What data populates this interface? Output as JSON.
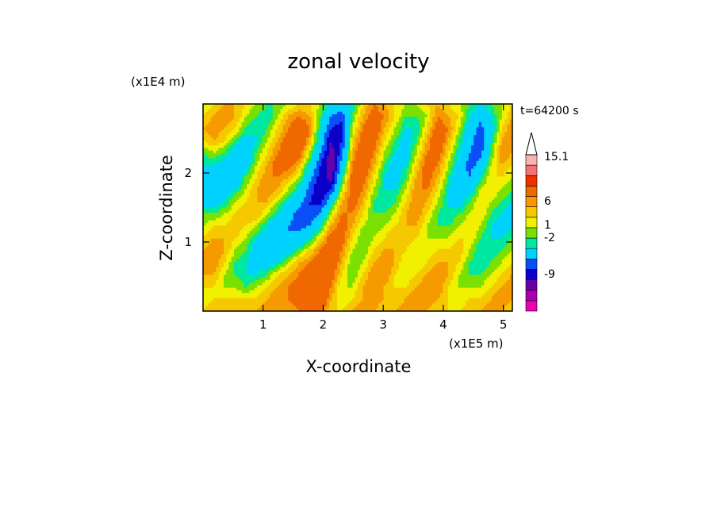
{
  "chart_data": {
    "type": "heatmap",
    "title": "zonal velocity",
    "xlabel": "X-coordinate",
    "ylabel": "Z-coordinate",
    "x_scale_label": "(x1E5 m)",
    "y_scale_label": "(x1E4 m)",
    "time_label": "t=64200 s",
    "xlim": [
      0,
      5.15
    ],
    "ylim": [
      0,
      3.0
    ],
    "x_ticks": [
      1,
      2,
      3,
      4,
      5
    ],
    "y_ticks": [
      1,
      2
    ],
    "x_tick_labels": [
      "1",
      "2",
      "3",
      "4",
      "5"
    ],
    "y_tick_labels": [
      "1",
      "2"
    ],
    "colorbar": {
      "extend": "max",
      "colors": [
        "#e900b4",
        "#a800b0",
        "#6a00a8",
        "#0a00c8",
        "#0a4ef5",
        "#00d2ff",
        "#00e7a0",
        "#7ae000",
        "#f0f000",
        "#f5c800",
        "#f59a00",
        "#f06800",
        "#f03000",
        "#f57070",
        "#fbb2b2"
      ],
      "tick_labels": [
        "15.1",
        "6",
        "1",
        "-2",
        "-9"
      ],
      "tick_values": [
        15.1,
        6,
        1,
        -2,
        -9
      ]
    },
    "field": [
      [
        0,
        1,
        2,
        2,
        1,
        0,
        -1,
        -1,
        0,
        1,
        1,
        0,
        -2,
        -4,
        -2,
        1,
        3,
        2,
        1,
        0,
        0,
        1,
        2,
        1,
        0,
        -1,
        -2,
        -1,
        0,
        1
      ],
      [
        1,
        2,
        3,
        2,
        0,
        -1,
        -2,
        0,
        2,
        3,
        2,
        -1,
        -5,
        -6,
        -1,
        2,
        4,
        3,
        1,
        -1,
        -1,
        0,
        3,
        2,
        1,
        -2,
        -4,
        -2,
        0,
        2
      ],
      [
        2,
        3,
        2,
        1,
        -1,
        -2,
        -1,
        1,
        3,
        5,
        3,
        -2,
        -7,
        -8,
        0,
        3,
        5,
        2,
        0,
        -2,
        -2,
        1,
        4,
        3,
        0,
        -3,
        -6,
        -3,
        1,
        3
      ],
      [
        1,
        2,
        1,
        -1,
        -3,
        -2,
        0,
        2,
        4,
        6,
        2,
        -3,
        -9,
        -7,
        1,
        4,
        4,
        1,
        -1,
        -3,
        -1,
        2,
        5,
        2,
        -1,
        -4,
        -7,
        -2,
        2,
        3
      ],
      [
        -1,
        0,
        -1,
        -3,
        -4,
        -1,
        1,
        3,
        5,
        4,
        0,
        -5,
        -10,
        -6,
        2,
        5,
        3,
        0,
        -2,
        -3,
        0,
        3,
        4,
        1,
        -2,
        -5,
        -6,
        -1,
        3,
        2
      ],
      [
        -2,
        -2,
        -3,
        -5,
        -3,
        0,
        2,
        4,
        4,
        2,
        -2,
        -7,
        -11,
        -4,
        3,
        5,
        2,
        -1,
        -3,
        -2,
        1,
        4,
        3,
        0,
        -3,
        -6,
        -4,
        0,
        2,
        1
      ],
      [
        -3,
        -4,
        -5,
        -4,
        -1,
        1,
        3,
        3,
        2,
        0,
        -4,
        -8,
        -10,
        -2,
        4,
        4,
        1,
        -2,
        -3,
        -1,
        2,
        4,
        2,
        -1,
        -4,
        -5,
        -2,
        1,
        1,
        0
      ],
      [
        -4,
        -5,
        -4,
        -2,
        0,
        2,
        3,
        2,
        0,
        -2,
        -6,
        -9,
        -7,
        0,
        4,
        3,
        0,
        -2,
        -2,
        0,
        3,
        3,
        1,
        -2,
        -4,
        -3,
        0,
        1,
        0,
        -1
      ],
      [
        -3,
        -3,
        -2,
        0,
        1,
        2,
        2,
        0,
        -2,
        -4,
        -7,
        -8,
        -3,
        2,
        4,
        2,
        -1,
        -2,
        -1,
        1,
        3,
        2,
        0,
        -2,
        -3,
        -1,
        1,
        0,
        -1,
        -2
      ],
      [
        -1,
        -1,
        0,
        1,
        2,
        2,
        0,
        -2,
        -4,
        -6,
        -7,
        -5,
        0,
        3,
        3,
        1,
        -1,
        -1,
        0,
        2,
        3,
        1,
        -1,
        -2,
        -1,
        0,
        1,
        -1,
        -2,
        -3
      ],
      [
        0,
        1,
        1,
        2,
        1,
        0,
        -2,
        -4,
        -5,
        -6,
        -5,
        -2,
        2,
        4,
        2,
        0,
        -1,
        0,
        1,
        2,
        2,
        0,
        -1,
        -1,
        0,
        1,
        0,
        -2,
        -3,
        -2
      ],
      [
        1,
        2,
        2,
        1,
        0,
        -2,
        -3,
        -5,
        -5,
        -4,
        -2,
        1,
        4,
        4,
        1,
        -1,
        0,
        1,
        2,
        2,
        1,
        0,
        0,
        0,
        1,
        1,
        -1,
        -2,
        -2,
        -1
      ],
      [
        2,
        3,
        2,
        0,
        -1,
        -3,
        -4,
        -4,
        -3,
        -1,
        1,
        3,
        5,
        3,
        0,
        -1,
        1,
        2,
        2,
        1,
        0,
        0,
        1,
        1,
        2,
        0,
        -2,
        -2,
        -1,
        0
      ],
      [
        3,
        3,
        1,
        -1,
        -2,
        -3,
        -3,
        -2,
        0,
        2,
        3,
        5,
        5,
        2,
        -1,
        0,
        2,
        3,
        2,
        0,
        0,
        1,
        2,
        2,
        1,
        -1,
        -2,
        -1,
        0,
        1
      ],
      [
        2,
        2,
        0,
        -1,
        -2,
        -2,
        -1,
        1,
        2,
        3,
        5,
        6,
        4,
        1,
        -1,
        1,
        3,
        3,
        1,
        0,
        1,
        2,
        3,
        2,
        0,
        -1,
        -1,
        0,
        1,
        2
      ],
      [
        1,
        1,
        0,
        0,
        -1,
        0,
        1,
        2,
        3,
        4,
        6,
        6,
        3,
        0,
        0,
        2,
        3,
        2,
        1,
        1,
        2,
        3,
        3,
        1,
        0,
        0,
        0,
        1,
        2,
        3
      ],
      [
        0,
        1,
        1,
        1,
        1,
        1,
        2,
        3,
        3,
        4,
        5,
        5,
        2,
        0,
        1,
        2,
        3,
        2,
        1,
        2,
        3,
        3,
        2,
        1,
        0,
        1,
        1,
        2,
        3,
        2
      ],
      [
        1,
        2,
        2,
        2,
        2,
        2,
        3,
        3,
        2,
        3,
        4,
        4,
        1,
        1,
        2,
        3,
        2,
        1,
        2,
        3,
        3,
        2,
        1,
        1,
        1,
        2,
        2,
        3,
        2,
        1
      ]
    ]
  }
}
